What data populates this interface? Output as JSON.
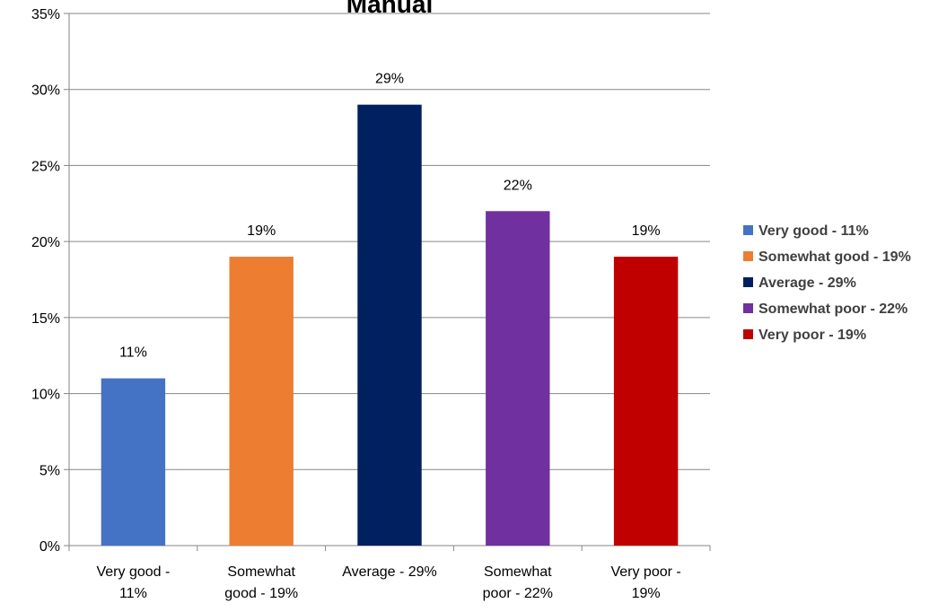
{
  "chart_data": {
    "type": "bar",
    "title": "Manual",
    "xlabel": "",
    "ylabel": "",
    "categories": [
      "Very good - 11%",
      "Somewhat good - 19%",
      "Average - 29%",
      "Somewhat poor - 22%",
      "Very poor - 19%"
    ],
    "category_label_lines": [
      [
        "Very good -",
        "11%"
      ],
      [
        "Somewhat",
        "good - 19%"
      ],
      [
        "Average - 29%"
      ],
      [
        "Somewhat",
        "poor - 22%"
      ],
      [
        "Very poor -",
        "19%"
      ]
    ],
    "values": [
      11,
      19,
      29,
      22,
      19
    ],
    "data_labels": [
      "11%",
      "19%",
      "29%",
      "22%",
      "19%"
    ],
    "colors": [
      "#4472c4",
      "#ed7d31",
      "#002060",
      "#7030a0",
      "#c00000"
    ],
    "ylim": [
      0,
      35
    ],
    "y_ticks": [
      0,
      5,
      10,
      15,
      20,
      25,
      30,
      35
    ],
    "y_tick_labels": [
      "0%",
      "5%",
      "10%",
      "15%",
      "20%",
      "25%",
      "30%",
      "35%"
    ],
    "grid": true,
    "legend_position": "right",
    "legend": [
      "Very good - 11%",
      "Somewhat good - 19%",
      "Average - 29%",
      "Somewhat poor - 22%",
      "Very poor - 19%"
    ]
  }
}
